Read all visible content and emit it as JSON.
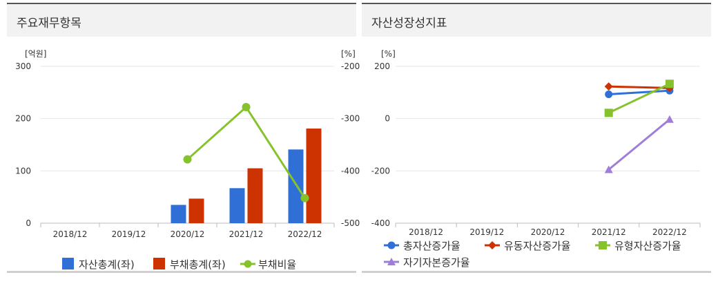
{
  "panels": {
    "left": {
      "title": "주요재무항목"
    },
    "right": {
      "title": "자산성장성지표"
    }
  },
  "chart_data": [
    {
      "type": "bar",
      "title": "주요재무항목",
      "categories": [
        "2018/12",
        "2019/12",
        "2020/12",
        "2021/12",
        "2022/12"
      ],
      "y_unit_left": "[억원]",
      "y_unit_right": "[%]",
      "y_ticks_left": [
        "300",
        "200",
        "100",
        "0"
      ],
      "y_ticks_right": [
        "-200",
        "-300",
        "-400",
        "-500"
      ],
      "ylim_left": [
        0,
        300
      ],
      "ylim_right": [
        -500,
        -200
      ],
      "grid": true,
      "legend": "bottom",
      "series": [
        {
          "name": "자산총계(좌)",
          "type": "bar",
          "axis": "left",
          "color": "#2f6fd6",
          "values": [
            null,
            null,
            35,
            67,
            141
          ]
        },
        {
          "name": "부채총계(좌)",
          "type": "bar",
          "axis": "left",
          "color": "#cc3300",
          "values": [
            null,
            null,
            47,
            105,
            181
          ]
        },
        {
          "name": "부채비율",
          "type": "line",
          "axis": "right",
          "color": "#86c22b",
          "values": [
            null,
            null,
            -378,
            -278,
            -452
          ]
        }
      ]
    },
    {
      "type": "line",
      "title": "자산성장성지표",
      "categories": [
        "2018/12",
        "2019/12",
        "2020/12",
        "2021/12",
        "2022/12"
      ],
      "y_unit": "[%]",
      "y_ticks": [
        "200",
        "0",
        "-200",
        "-400"
      ],
      "ylim": [
        -400,
        200
      ],
      "grid": true,
      "legend": "bottom",
      "series": [
        {
          "name": "총자산증가율",
          "marker": "circle",
          "color": "#2f6fd6",
          "values": [
            null,
            null,
            null,
            93,
            107
          ]
        },
        {
          "name": "유동자산증가율",
          "marker": "diamond",
          "color": "#cc3300",
          "values": [
            null,
            null,
            null,
            123,
            117
          ]
        },
        {
          "name": "유형자산증가율",
          "marker": "square",
          "color": "#86c22b",
          "values": [
            null,
            null,
            null,
            22,
            133
          ]
        },
        {
          "name": "자기자본증가율",
          "marker": "triangle",
          "color": "#a07ed8",
          "values": [
            null,
            null,
            null,
            -195,
            -3
          ]
        }
      ]
    }
  ]
}
